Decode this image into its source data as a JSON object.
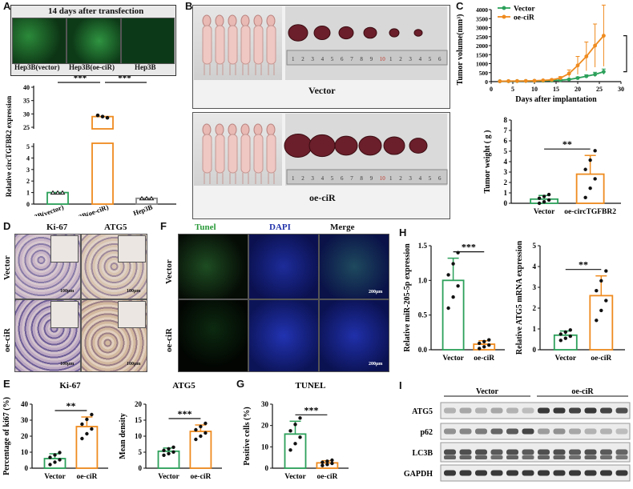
{
  "panels": {
    "A": {
      "label": "A",
      "header": "14 days after transfection",
      "images": [
        "Hep3B(vector)",
        "Hep3B(oe-ciR)",
        "Hep3B"
      ]
    },
    "B": {
      "label": "B",
      "groups": [
        "Vector",
        "oe-ciR"
      ],
      "ruler": [
        "1",
        "2",
        "3",
        "4",
        "5",
        "6",
        "7",
        "8",
        "9",
        "10",
        "1",
        "2",
        "3",
        "4",
        "5",
        "6"
      ]
    },
    "C": {
      "label": "C"
    },
    "D": {
      "label": "D",
      "cols": [
        "Ki-67",
        "ATG5"
      ],
      "rows": [
        "Vector",
        "oe-ciR"
      ],
      "scale": "100μm"
    },
    "E": {
      "label": "E"
    },
    "F": {
      "label": "F",
      "cols": [
        "Tunel",
        "DAPI",
        "Merge"
      ],
      "rows": [
        "Vector",
        "oe-ciR"
      ],
      "scale": "200μm"
    },
    "G": {
      "label": "G"
    },
    "H": {
      "label": "H"
    },
    "I": {
      "label": "I",
      "groups": [
        "Vector",
        "oe-ciR"
      ],
      "rows": [
        "ATG5",
        "p62",
        "LC3B",
        "GAPDH"
      ]
    }
  },
  "colors": {
    "vector": "#2ca05a",
    "oe": "#ef8b1f",
    "black": "#111111",
    "tunel": "#33cc44",
    "dapi": "#2030b0"
  },
  "chart_data": [
    {
      "id": "A-bar",
      "type": "bar",
      "ylabel": "Relative circTGFBR2 expression",
      "categories": [
        "Hep3B(vector)",
        "Hep3B(oe-ciR)",
        "Hep3B"
      ],
      "values": [
        1.0,
        29.0,
        0.5
      ],
      "errors": [
        0.15,
        0.3,
        0.1
      ],
      "broken_axis": true,
      "yticks_lower": [
        "0",
        "1",
        "2",
        "3",
        "4",
        "5"
      ],
      "yticks_upper": [
        "25",
        "30",
        "35",
        "40"
      ],
      "sig": [
        "***",
        "***"
      ]
    },
    {
      "id": "C-line",
      "type": "line",
      "title": "",
      "xlabel": "Days after implantation",
      "ylabel": "Tumor volume(mm³)",
      "xlim": [
        0,
        30
      ],
      "ylim": [
        0,
        4000
      ],
      "xticks": [
        "0",
        "5",
        "10",
        "15",
        "20",
        "25",
        "30"
      ],
      "yticks": [
        "0",
        "500",
        "1000",
        "1500",
        "2000",
        "2500",
        "3000",
        "3500",
        "4000"
      ],
      "legend": [
        "Vector",
        "oe-ciR"
      ],
      "sig": "***",
      "series": [
        {
          "name": "Vector",
          "x": [
            2,
            4,
            6,
            8,
            10,
            12,
            14,
            16,
            18,
            20,
            22,
            24,
            26
          ],
          "y": [
            20,
            25,
            30,
            35,
            40,
            50,
            60,
            80,
            120,
            200,
            300,
            400,
            550
          ],
          "err": [
            5,
            5,
            5,
            10,
            10,
            10,
            20,
            30,
            40,
            60,
            80,
            120,
            150
          ]
        },
        {
          "name": "oe-ciR",
          "x": [
            2,
            4,
            6,
            8,
            10,
            12,
            14,
            16,
            18,
            20,
            22,
            24,
            26
          ],
          "y": [
            20,
            30,
            35,
            40,
            50,
            70,
            100,
            200,
            450,
            900,
            1400,
            2000,
            2550
          ],
          "err": [
            5,
            5,
            10,
            10,
            10,
            20,
            40,
            80,
            200,
            500,
            800,
            1200,
            1700
          ]
        }
      ]
    },
    {
      "id": "C-weight",
      "type": "bar",
      "ylabel": "Tumor weight ( g )",
      "ylim": [
        0,
        8
      ],
      "yticks": [
        "0",
        "1",
        "2",
        "3",
        "4",
        "5",
        "6",
        "7",
        "8"
      ],
      "categories": [
        "Vector",
        "oe-circTGFBR2"
      ],
      "values": [
        0.4,
        2.8
      ],
      "errors": [
        0.35,
        1.8
      ],
      "sig": "**"
    },
    {
      "id": "E-ki67",
      "type": "bar",
      "title": "Ki-67",
      "ylabel": "Percentage of ki67 (%)",
      "ylim": [
        0,
        40
      ],
      "yticks": [
        "0",
        "10",
        "20",
        "30",
        "40"
      ],
      "categories": [
        "Vector",
        "oe-ciR"
      ],
      "values": [
        6,
        26
      ],
      "errors": [
        3,
        6
      ],
      "sig": "**"
    },
    {
      "id": "E-atg5",
      "type": "bar",
      "title": "ATG5",
      "ylabel": "Mean density",
      "ylim": [
        0,
        20
      ],
      "yticks": [
        "0",
        "5",
        "10",
        "15",
        "20"
      ],
      "categories": [
        "Vector",
        "oe-ciR"
      ],
      "values": [
        5.3,
        11.5
      ],
      "errors": [
        1,
        2
      ],
      "sig": "***"
    },
    {
      "id": "G-tunel",
      "type": "bar",
      "title": "TUNEL",
      "ylabel": "Positive cells (%)",
      "ylim": [
        0,
        30
      ],
      "yticks": [
        "0",
        "10",
        "20",
        "30"
      ],
      "categories": [
        "Vector",
        "oe-ciR"
      ],
      "values": [
        16,
        2.5
      ],
      "errors": [
        6,
        1
      ],
      "sig": "***"
    },
    {
      "id": "H-mir",
      "type": "bar",
      "ylabel": "Relative miR-205-5p expression",
      "ylim": [
        0,
        1.5
      ],
      "yticks": [
        "0.0",
        "0.5",
        "1.0",
        "1.5"
      ],
      "categories": [
        "Vector",
        "oe-ciR"
      ],
      "values": [
        1.0,
        0.08
      ],
      "errors": [
        0.32,
        0.05
      ],
      "sig": "***"
    },
    {
      "id": "H-atg5",
      "type": "bar",
      "ylabel": "Relative ATG5 mRNA expression",
      "ylim": [
        0,
        5
      ],
      "yticks": [
        "0",
        "1",
        "2",
        "3",
        "4",
        "5"
      ],
      "categories": [
        "Vector",
        "oe-ciR"
      ],
      "values": [
        0.7,
        2.6
      ],
      "errors": [
        0.2,
        0.95
      ],
      "sig": "**"
    }
  ]
}
